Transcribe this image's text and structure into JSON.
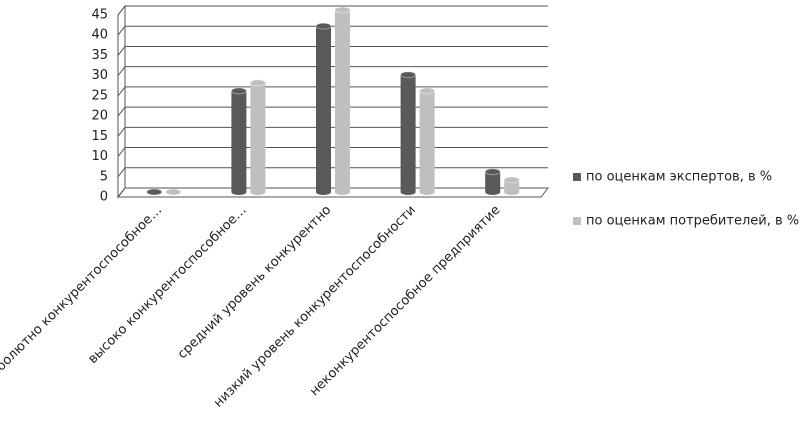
{
  "chart_data": {
    "type": "bar",
    "categories": [
      "аболютно конкурентоспособное…",
      "высоко конкурентоспособное…",
      "средний уровень конкурентно",
      "низкий уровень конкурентоспособности",
      "неконкурентоспособное предприятие"
    ],
    "series": [
      {
        "name": "по оценкам экспертов, в %",
        "color": "#595959",
        "values": [
          0,
          25,
          41,
          29,
          5
        ]
      },
      {
        "name": "по оценкам потребителей, в %",
        "color": "#bfbfbf",
        "values": [
          0,
          27,
          45,
          25,
          3
        ]
      }
    ],
    "ylim": [
      0,
      45
    ],
    "yticks": [
      0,
      5,
      10,
      15,
      20,
      25,
      30,
      35,
      40,
      45
    ],
    "grid": true,
    "legend": "right"
  }
}
